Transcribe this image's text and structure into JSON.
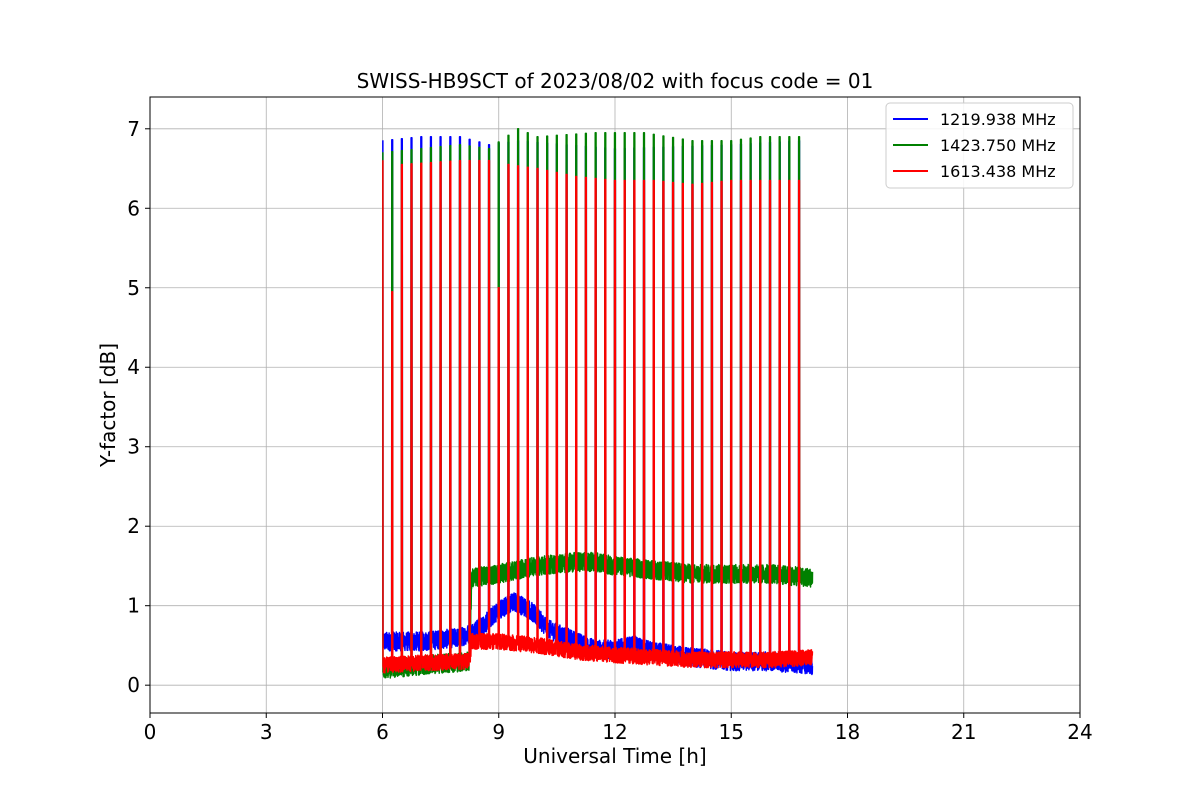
{
  "chart_data": {
    "type": "line",
    "title": "SWISS-HB9SCT of 2023/08/02 with focus code = 01",
    "xlabel": "Universal Time [h]",
    "ylabel": "Y-factor [dB]",
    "xlim": [
      0,
      24
    ],
    "ylim": [
      -0.35,
      7.4
    ],
    "xticks": [
      0,
      3,
      6,
      9,
      12,
      15,
      18,
      21,
      24
    ],
    "yticks": [
      0,
      1,
      2,
      3,
      4,
      5,
      6,
      7
    ],
    "grid": true,
    "legend_position": "top-right",
    "data_range_hours": [
      6.0,
      17.1
    ],
    "calibration_spike_times": [
      6.0,
      6.25,
      6.5,
      6.75,
      7.0,
      7.25,
      7.5,
      7.75,
      8.0,
      8.25,
      8.5,
      8.75,
      9.0,
      9.25,
      9.5,
      9.75,
      10.0,
      10.25,
      10.5,
      10.75,
      11.0,
      11.25,
      11.5,
      11.75,
      12.0,
      12.25,
      12.5,
      12.75,
      13.0,
      13.25,
      13.5,
      13.75,
      14.0,
      14.25,
      14.5,
      14.75,
      15.0,
      15.25,
      15.5,
      15.75,
      16.0,
      16.25,
      16.5,
      16.75
    ],
    "series": [
      {
        "name": "1219.938 MHz",
        "color": "#0000ff",
        "baseline": {
          "x": [
            6.0,
            7.0,
            8.0,
            8.25,
            8.6,
            9.0,
            9.4,
            9.8,
            10.3,
            11.0,
            11.5,
            12.0,
            12.5,
            13.0,
            14.0,
            15.0,
            16.0,
            17.1
          ],
          "y": [
            0.55,
            0.55,
            0.6,
            0.65,
            0.75,
            0.95,
            1.05,
            0.95,
            0.7,
            0.55,
            0.45,
            0.45,
            0.5,
            0.42,
            0.35,
            0.3,
            0.3,
            0.25
          ]
        },
        "noise_amplitude": 0.12,
        "spike_peak": {
          "x": [
            6.0,
            7.0,
            8.0,
            8.75,
            9.5,
            12.0,
            15.0,
            16.75
          ],
          "y": [
            6.85,
            6.9,
            6.9,
            6.8,
            6.85,
            6.75,
            6.8,
            6.85
          ]
        }
      },
      {
        "name": "1423.750 MHz",
        "color": "#008000",
        "baseline": {
          "x": [
            6.0,
            7.0,
            8.25,
            8.3,
            9.0,
            10.0,
            11.0,
            11.5,
            12.0,
            13.0,
            14.0,
            15.0,
            16.0,
            17.1
          ],
          "y": [
            0.2,
            0.25,
            0.3,
            1.35,
            1.4,
            1.5,
            1.55,
            1.55,
            1.5,
            1.45,
            1.4,
            1.4,
            1.4,
            1.35
          ]
        },
        "noise_amplitude": 0.12,
        "spike_peak": {
          "x": [
            6.0,
            8.0,
            8.75,
            9.5,
            10.0,
            11.5,
            12.75,
            14.0,
            15.0,
            15.75,
            16.75
          ],
          "y": [
            6.7,
            6.8,
            6.75,
            7.0,
            6.9,
            6.95,
            6.95,
            6.85,
            6.85,
            6.9,
            6.9
          ]
        }
      },
      {
        "name": "1613.438 MHz",
        "color": "#ff0000",
        "baseline": {
          "x": [
            6.0,
            7.0,
            8.25,
            8.3,
            9.0,
            10.0,
            11.0,
            12.0,
            13.0,
            14.0,
            15.0,
            16.0,
            17.1
          ],
          "y": [
            0.25,
            0.28,
            0.3,
            0.55,
            0.55,
            0.5,
            0.42,
            0.38,
            0.35,
            0.32,
            0.32,
            0.32,
            0.35
          ]
        },
        "noise_amplitude": 0.1,
        "spike_peak": {
          "x": [
            6.0,
            6.25,
            6.5,
            8.0,
            8.75,
            9.0,
            9.25,
            10.0,
            11.0,
            12.0,
            13.0,
            14.0,
            15.0,
            16.0,
            16.75
          ],
          "y": [
            6.6,
            4.95,
            6.55,
            6.6,
            6.6,
            5.0,
            6.55,
            6.5,
            6.4,
            6.35,
            6.35,
            6.3,
            6.35,
            6.35,
            6.35
          ]
        }
      }
    ]
  }
}
